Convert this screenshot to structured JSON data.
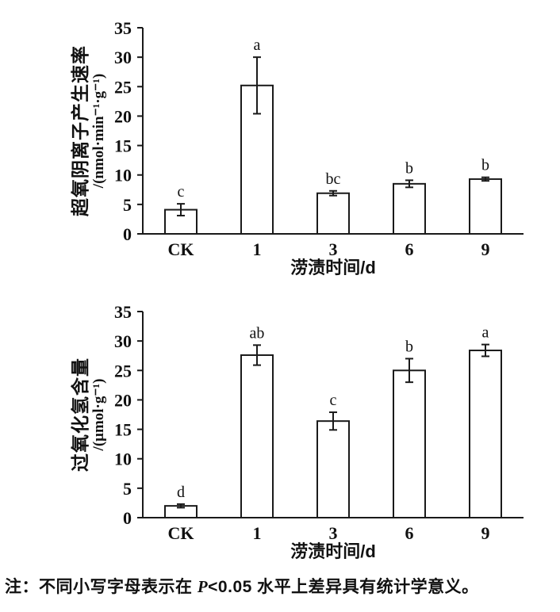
{
  "note": {
    "prefix": "注：不同小写字母表示在 ",
    "p_symbol": "P",
    "suffix": "<0.05 水平上差异具有统计学意义。"
  },
  "chart_data": [
    {
      "type": "bar",
      "ylabel": "超氧阴离子产生速率",
      "ylabel_unit": "/(nmol·min⁻¹·g⁻¹)",
      "xlabel": "涝渍时间/d",
      "categories": [
        "CK",
        "1",
        "3",
        "6",
        "9"
      ],
      "values": [
        4.1,
        25.2,
        6.9,
        8.5,
        9.3
      ],
      "errors": [
        1.0,
        4.8,
        0.4,
        0.6,
        0.3
      ],
      "sig_letters": [
        "c",
        "a",
        "bc",
        "b",
        "b"
      ],
      "ylim": [
        0,
        35
      ],
      "ytick_step": 5,
      "grid": "off",
      "legend": "none",
      "bar_fill": "#ffffff",
      "bar_stroke": "#1a1a1a"
    },
    {
      "type": "bar",
      "ylabel": "过氧化氢含量",
      "ylabel_unit": "/(μmol·g⁻¹)",
      "xlabel": "涝渍时间/d",
      "categories": [
        "CK",
        "1",
        "3",
        "6",
        "9"
      ],
      "values": [
        2.0,
        27.6,
        16.4,
        25.0,
        28.4
      ],
      "errors": [
        0.3,
        1.7,
        1.5,
        2.0,
        1.0
      ],
      "sig_letters": [
        "d",
        "ab",
        "c",
        "b",
        "a"
      ],
      "ylim": [
        0,
        35
      ],
      "ytick_step": 5,
      "grid": "off",
      "legend": "none",
      "bar_fill": "#ffffff",
      "bar_stroke": "#1a1a1a"
    }
  ]
}
